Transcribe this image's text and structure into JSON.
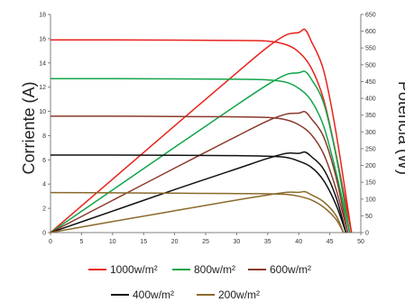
{
  "chart_data": {
    "type": "line",
    "title": "",
    "xlabel": "",
    "ylabel_left": "Corriente (A)",
    "ylabel_right": "Potencia (W)",
    "xlim": [
      0,
      50
    ],
    "ylim_left": [
      0,
      18
    ],
    "ylim_right": [
      0,
      650
    ],
    "x_ticks": [
      0,
      5,
      10,
      15,
      20,
      25,
      30,
      35,
      40,
      45,
      50
    ],
    "y_left_ticks": [
      0,
      2,
      4,
      6,
      8,
      10,
      12,
      14,
      16,
      18
    ],
    "y_right_ticks": [
      0,
      50,
      100,
      150,
      200,
      250,
      300,
      350,
      400,
      450,
      500,
      550,
      600,
      650
    ],
    "grid": false,
    "legend_position": "bottom",
    "series": [
      {
        "name": "1000w/m²",
        "color": "#e8231b",
        "current": {
          "x": [
            0,
            10,
            20,
            30,
            35,
            38,
            40,
            42,
            44,
            46,
            48.5
          ],
          "y": [
            15.9,
            15.9,
            15.88,
            15.85,
            15.8,
            15.5,
            14.9,
            13.6,
            11.0,
            6.5,
            0
          ]
        },
        "power": {
          "x": [
            0,
            10,
            20,
            30,
            35,
            38,
            40,
            41,
            42,
            44,
            46,
            48.5
          ],
          "y": [
            0,
            159,
            318,
            476,
            553,
            589,
            596,
            605,
            571,
            484,
            299,
            0
          ]
        }
      },
      {
        "name": "800w/m²",
        "color": "#12a54a",
        "current": {
          "x": [
            0,
            10,
            20,
            30,
            35,
            38,
            40,
            42,
            44,
            46,
            48.2
          ],
          "y": [
            12.7,
            12.7,
            12.68,
            12.65,
            12.6,
            12.4,
            11.9,
            10.9,
            8.8,
            5.0,
            0
          ]
        },
        "power": {
          "x": [
            0,
            10,
            20,
            30,
            35,
            38,
            40,
            41,
            42,
            44,
            46,
            48.2
          ],
          "y": [
            0,
            127,
            254,
            380,
            441,
            471,
            476,
            480,
            458,
            387,
            230,
            0
          ]
        }
      },
      {
        "name": "600w/m²",
        "color": "#8b3a2b",
        "current": {
          "x": [
            0,
            10,
            20,
            30,
            35,
            38,
            40,
            42,
            44,
            46,
            47.9
          ],
          "y": [
            9.6,
            9.6,
            9.58,
            9.55,
            9.5,
            9.3,
            8.9,
            8.1,
            6.5,
            3.6,
            0
          ]
        },
        "power": {
          "x": [
            0,
            10,
            20,
            30,
            35,
            38,
            40,
            41,
            42,
            44,
            46,
            47.9
          ],
          "y": [
            0,
            96,
            192,
            287,
            333,
            353,
            356,
            360,
            340,
            286,
            166,
            0
          ]
        }
      },
      {
        "name": "400w/m²",
        "color": "#111111",
        "current": {
          "x": [
            0,
            10,
            20,
            30,
            35,
            38,
            40,
            42,
            44,
            46,
            47.6
          ],
          "y": [
            6.4,
            6.4,
            6.38,
            6.35,
            6.3,
            6.2,
            5.9,
            5.4,
            4.3,
            2.3,
            0
          ]
        },
        "power": {
          "x": [
            0,
            10,
            20,
            30,
            35,
            38,
            40,
            41,
            42,
            44,
            46,
            47.6
          ],
          "y": [
            0,
            64,
            128,
            190,
            221,
            236,
            236,
            240,
            227,
            189,
            106,
            0
          ]
        }
      },
      {
        "name": "200w/m²",
        "color": "#8a6a2a",
        "current": {
          "x": [
            0,
            10,
            20,
            30,
            35,
            38,
            40,
            42,
            44,
            46,
            47.2
          ],
          "y": [
            3.3,
            3.28,
            3.25,
            3.22,
            3.2,
            3.15,
            3.0,
            2.7,
            2.1,
            1.1,
            0
          ]
        },
        "power": {
          "x": [
            0,
            10,
            20,
            30,
            35,
            38,
            40,
            41,
            42,
            44,
            46,
            47.2
          ],
          "y": [
            0,
            33,
            65,
            97,
            112,
            120,
            120,
            122,
            113,
            92,
            51,
            0
          ]
        }
      }
    ]
  }
}
